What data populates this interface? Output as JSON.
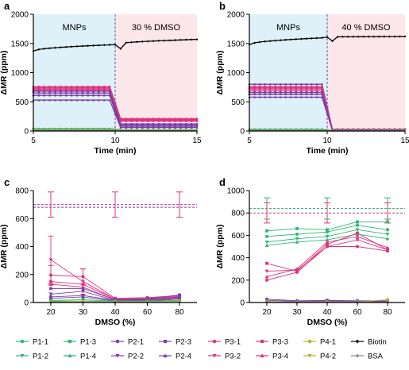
{
  "series_styles": [
    {
      "name": "P1-1",
      "color": "#2eb872",
      "marker": "circle"
    },
    {
      "name": "P1-2",
      "color": "#2eb872",
      "marker": "tri-down"
    },
    {
      "name": "P1-3",
      "color": "#2eb872",
      "marker": "square"
    },
    {
      "name": "P1-4",
      "color": "#2eb872",
      "marker": "tri-up"
    },
    {
      "name": "P2-1",
      "color": "#7a3fa8",
      "marker": "circle"
    },
    {
      "name": "P2-2",
      "color": "#7a3fa8",
      "marker": "tri-down"
    },
    {
      "name": "P2-3",
      "color": "#7a3fa8",
      "marker": "square"
    },
    {
      "name": "P2-4",
      "color": "#7a3fa8",
      "marker": "tri-up"
    },
    {
      "name": "P3-1",
      "color": "#e0337e",
      "marker": "circle"
    },
    {
      "name": "P3-2",
      "color": "#e0337e",
      "marker": "tri-down"
    },
    {
      "name": "P3-3",
      "color": "#e0337e",
      "marker": "square"
    },
    {
      "name": "P3-4",
      "color": "#e0337e",
      "marker": "tri-up"
    },
    {
      "name": "P4-1",
      "color": "#b5b52e",
      "marker": "circle"
    },
    {
      "name": "P4-2",
      "color": "#b5b52e",
      "marker": "tri-down"
    },
    {
      "name": "Biotin",
      "color": "#000000",
      "marker": "diamond"
    },
    {
      "name": "BSA",
      "color": "#888888",
      "marker": "diamond"
    }
  ],
  "chart_data": [
    {
      "panel": "a",
      "type": "line",
      "xlabel": "Time (min)",
      "ylabel": "ΔMR (ppm)",
      "xlim": [
        5,
        15
      ],
      "ylim": [
        0,
        2000
      ],
      "xticks": [
        5,
        10,
        15
      ],
      "yticks": [
        0,
        500,
        1000,
        1500,
        2000
      ],
      "phase_labels": [
        "MNPs",
        "30 % DMSO"
      ],
      "phase_colors": [
        "#dff1f8",
        "#fbe6ea"
      ],
      "switch_x": 10,
      "levels": [
        {
          "name": "Biotin",
          "before": [
            1370,
            1480
          ],
          "after": [
            1480,
            1570
          ],
          "dip": true
        },
        {
          "name": "P3-1",
          "before": 760,
          "after": 210
        },
        {
          "name": "P3-2",
          "before": 740,
          "after": 195
        },
        {
          "name": "P3-3",
          "before": 720,
          "after": 180
        },
        {
          "name": "P3-4",
          "before": 700,
          "after": 170
        },
        {
          "name": "P2-1",
          "before": 680,
          "after": 120
        },
        {
          "name": "P2-2",
          "before": 650,
          "after": 100
        },
        {
          "name": "P2-3",
          "before": 610,
          "after": 80
        },
        {
          "name": "P2-4",
          "before": 530,
          "after": 60
        },
        {
          "name": "P1-1",
          "before": 40,
          "after": 20
        },
        {
          "name": "P1-2",
          "before": 30,
          "after": 15
        },
        {
          "name": "P4-1",
          "before": 20,
          "after": 10
        },
        {
          "name": "BSA",
          "before": 10,
          "after": 5
        }
      ]
    },
    {
      "panel": "b",
      "type": "line",
      "xlabel": "Time (min)",
      "ylabel": "ΔMR (ppm)",
      "xlim": [
        5,
        15
      ],
      "ylim": [
        0,
        2000
      ],
      "xticks": [
        5,
        10,
        15
      ],
      "yticks": [
        0,
        500,
        1000,
        1500,
        2000
      ],
      "phase_labels": [
        "MNPs",
        "40 % DMSO"
      ],
      "phase_colors": [
        "#dff1f8",
        "#fbe6ea"
      ],
      "switch_x": 10,
      "levels": [
        {
          "name": "Biotin",
          "before": [
            1480,
            1600
          ],
          "after": [
            1610,
            1620
          ],
          "dip": true
        },
        {
          "name": "P2-1",
          "before": 800,
          "after": 30
        },
        {
          "name": "P3-1",
          "before": 760,
          "after": 25
        },
        {
          "name": "P3-2",
          "before": 740,
          "after": 22
        },
        {
          "name": "P3-3",
          "before": 720,
          "after": 20
        },
        {
          "name": "P3-4",
          "before": 690,
          "after": 18
        },
        {
          "name": "P2-2",
          "before": 660,
          "after": 15
        },
        {
          "name": "P2-3",
          "before": 630,
          "after": 12
        },
        {
          "name": "P2-4",
          "before": 580,
          "after": 10
        },
        {
          "name": "P1-1",
          "before": 30,
          "after": 10
        },
        {
          "name": "P1-2",
          "before": 20,
          "after": 8
        },
        {
          "name": "P4-1",
          "before": 15,
          "after": 5
        },
        {
          "name": "BSA",
          "before": 10,
          "after": 5
        }
      ]
    },
    {
      "panel": "c",
      "type": "line",
      "xlabel": "DMSO (%)",
      "ylabel": "ΔMR (ppm)",
      "categories": [
        "20",
        "30",
        "40",
        "60",
        "80"
      ],
      "ylim": [
        0,
        800
      ],
      "yticks": [
        0,
        200,
        400,
        600,
        800
      ],
      "ref_lines": [
        {
          "name": "P3 reference",
          "color": "#e0337e",
          "value": 700,
          "err": 90
        },
        {
          "name": "P2 reference",
          "color": "#7a3fa8",
          "value": 680,
          "err": 0
        }
      ],
      "series": [
        {
          "name": "P3-2",
          "values": [
            305,
            150,
            25,
            30,
            45
          ],
          "err": [
            170,
            90,
            0,
            0,
            0
          ]
        },
        {
          "name": "P3-1",
          "values": [
            195,
            185,
            30,
            35,
            50
          ],
          "err": [
            70,
            55,
            0,
            0,
            0
          ]
        },
        {
          "name": "P3-3",
          "values": [
            150,
            130,
            25,
            25,
            40
          ],
          "err": [
            0,
            0,
            0,
            0,
            0
          ]
        },
        {
          "name": "P3-4",
          "values": [
            130,
            110,
            20,
            20,
            35
          ],
          "err": [
            0,
            0,
            0,
            0,
            0
          ]
        },
        {
          "name": "P2-1",
          "values": [
            100,
            100,
            20,
            25,
            55
          ],
          "err": [
            0,
            0,
            0,
            0,
            0
          ]
        },
        {
          "name": "P2-2",
          "values": [
            60,
            80,
            15,
            20,
            40
          ],
          "err": [
            0,
            0,
            0,
            0,
            0
          ]
        },
        {
          "name": "P2-3",
          "values": [
            40,
            50,
            15,
            15,
            30
          ],
          "err": [
            0,
            0,
            0,
            0,
            0
          ]
        },
        {
          "name": "P2-4",
          "values": [
            30,
            40,
            10,
            10,
            25
          ],
          "err": [
            0,
            0,
            0,
            0,
            0
          ]
        },
        {
          "name": "P1-1",
          "values": [
            15,
            20,
            10,
            10,
            15
          ],
          "err": [
            0,
            0,
            0,
            0,
            0
          ]
        },
        {
          "name": "P1-2",
          "values": [
            10,
            10,
            8,
            8,
            10
          ],
          "err": [
            0,
            0,
            0,
            0,
            0
          ]
        },
        {
          "name": "P4-1",
          "values": [
            5,
            8,
            5,
            5,
            8
          ],
          "err": [
            0,
            0,
            0,
            0,
            0
          ]
        },
        {
          "name": "BSA",
          "values": [
            2,
            2,
            2,
            2,
            2
          ],
          "err": [
            0,
            0,
            0,
            0,
            0
          ]
        }
      ]
    },
    {
      "panel": "d",
      "type": "line",
      "xlabel": "DMSO (%)",
      "ylabel": "ΔMR (ppm)",
      "categories": [
        "20",
        "30",
        "40",
        "60",
        "80"
      ],
      "ylim": [
        0,
        1000
      ],
      "yticks": [
        0,
        200,
        400,
        600,
        800,
        1000
      ],
      "ref_lines": [
        {
          "name": "P1 reference",
          "color": "#2eb872",
          "value": 840,
          "err": 95
        },
        {
          "name": "P3 reference",
          "color": "#e0337e",
          "value": 800,
          "err": 90
        }
      ],
      "series": [
        {
          "name": "P1-3",
          "values": [
            640,
            660,
            650,
            720,
            720
          ],
          "err": [
            0,
            0,
            0,
            0,
            0
          ]
        },
        {
          "name": "P1-1",
          "values": [
            590,
            610,
            630,
            690,
            650
          ],
          "err": [
            0,
            0,
            0,
            0,
            0
          ]
        },
        {
          "name": "P1-2",
          "values": [
            540,
            570,
            590,
            650,
            610
          ],
          "err": [
            0,
            0,
            0,
            0,
            0
          ]
        },
        {
          "name": "P1-4",
          "values": [
            510,
            540,
            560,
            610,
            570
          ],
          "err": [
            0,
            0,
            0,
            0,
            0
          ]
        },
        {
          "name": "P3-3",
          "values": [
            350,
            280,
            520,
            620,
            470
          ],
          "err": [
            0,
            0,
            0,
            0,
            0
          ]
        },
        {
          "name": "P3-2",
          "values": [
            280,
            290,
            500,
            560,
            470
          ],
          "err": [
            0,
            0,
            0,
            0,
            0
          ]
        },
        {
          "name": "P3-1",
          "values": [
            200,
            270,
            500,
            500,
            460
          ],
          "err": [
            0,
            0,
            0,
            0,
            0
          ]
        },
        {
          "name": "P3-4",
          "values": [
            230,
            300,
            540,
            590,
            490
          ],
          "err": [
            0,
            0,
            0,
            0,
            0
          ]
        },
        {
          "name": "P2-1",
          "values": [
            30,
            15,
            20,
            15,
            15
          ],
          "err": [
            0,
            0,
            0,
            0,
            0
          ]
        },
        {
          "name": "P2-2",
          "values": [
            20,
            10,
            15,
            10,
            10
          ],
          "err": [
            0,
            0,
            0,
            0,
            0
          ]
        },
        {
          "name": "P4-1",
          "values": [
            10,
            5,
            8,
            5,
            25
          ],
          "err": [
            0,
            0,
            0,
            0,
            0
          ]
        },
        {
          "name": "BSA",
          "values": [
            5,
            5,
            5,
            5,
            5
          ],
          "err": [
            0,
            0,
            0,
            0,
            0
          ]
        }
      ]
    }
  ],
  "panel_labels": [
    "a",
    "b",
    "c",
    "d"
  ],
  "legend": {
    "columns": [
      [
        "P1-1",
        "P1-2"
      ],
      [
        "P1-3",
        "P1-4"
      ],
      [
        "P2-1",
        "P2-2"
      ],
      [
        "P2-3",
        "P2-4"
      ],
      [
        "P3-1",
        "P3-2"
      ],
      [
        "P3-3",
        "P3-4"
      ],
      [
        "P4-1",
        "P4-2"
      ],
      [
        "Biotin",
        "BSA"
      ]
    ]
  }
}
